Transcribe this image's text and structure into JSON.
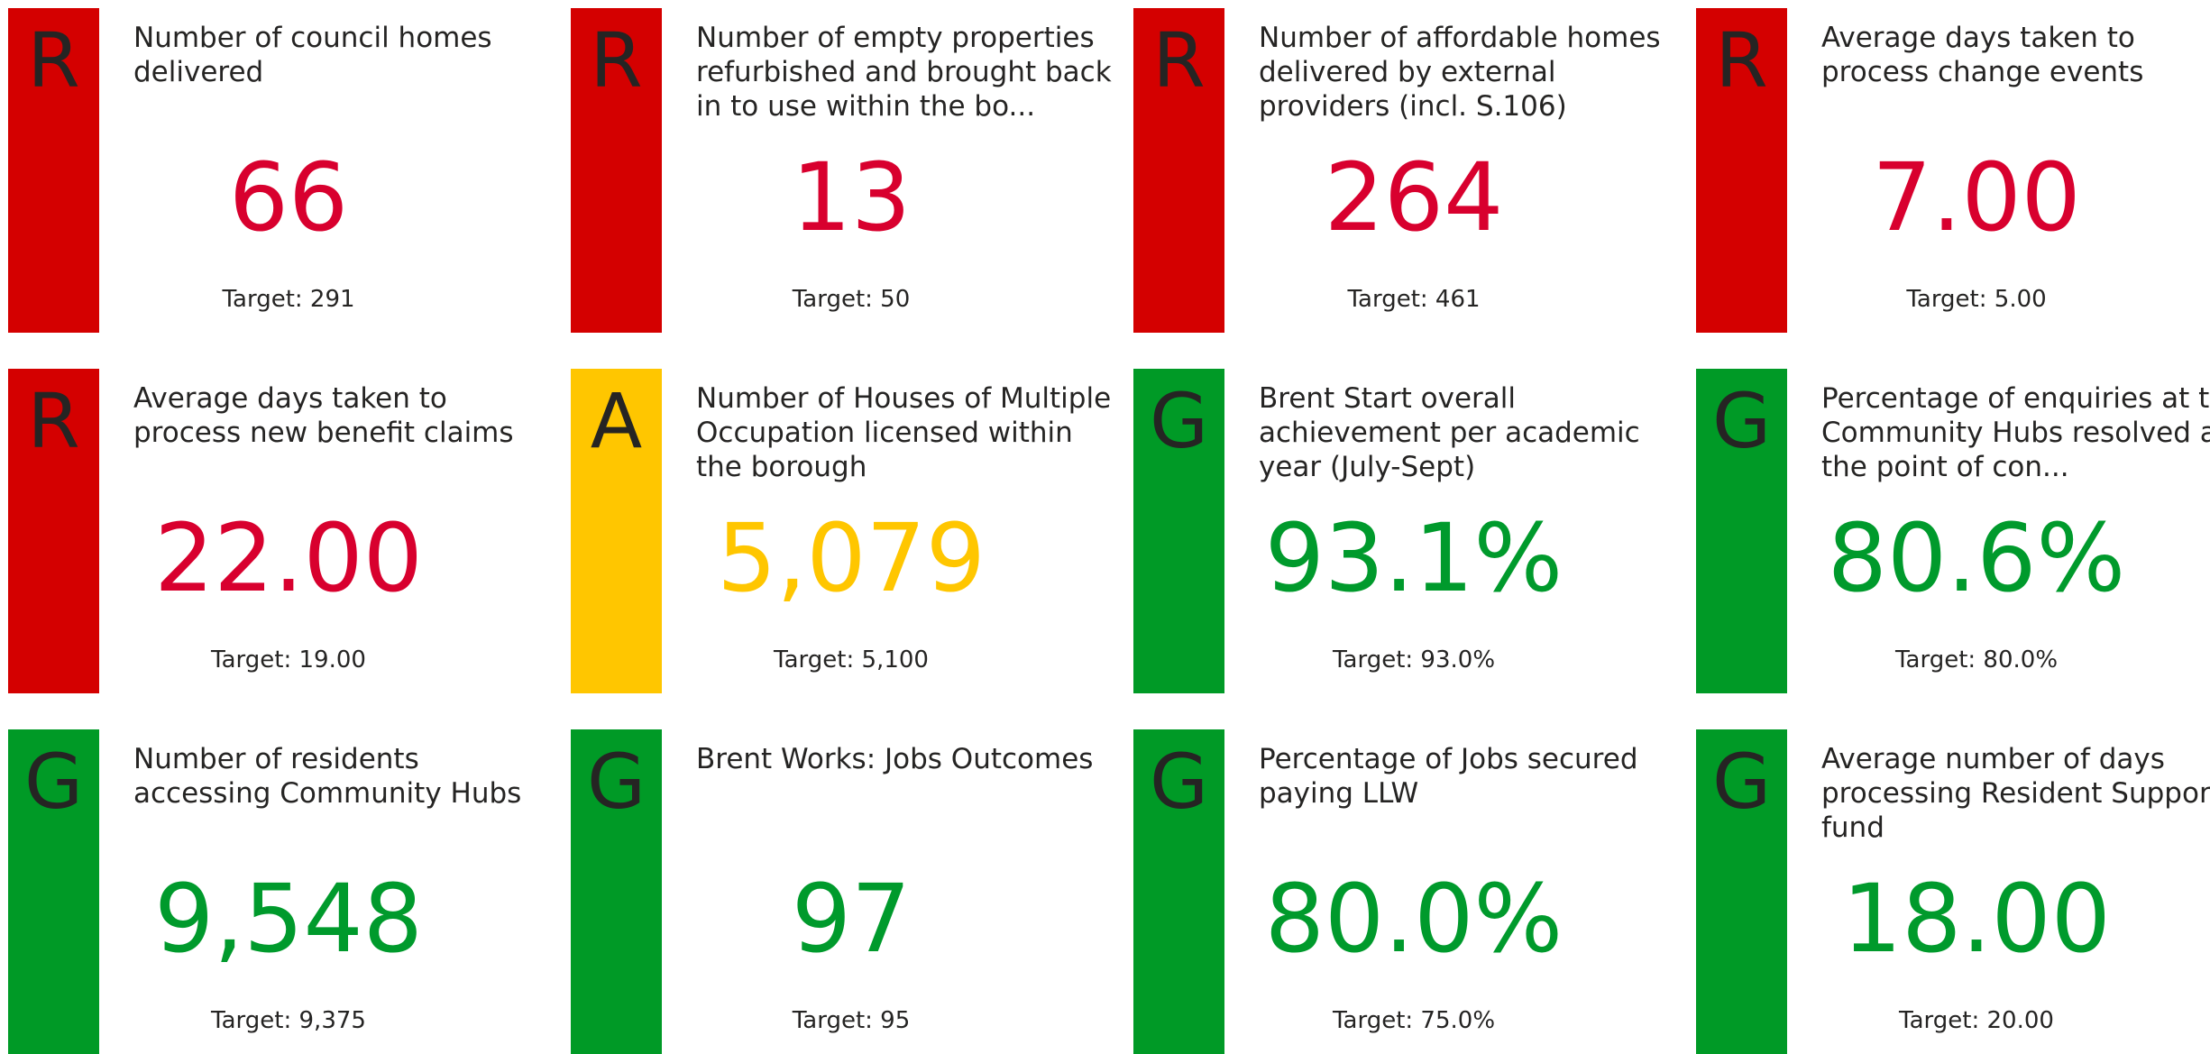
{
  "cards": [
    {
      "status": "R",
      "color": "#d40000",
      "value_color": "#d8002e",
      "title": "Number of council homes delivered",
      "value": "66",
      "target": "Target: 291"
    },
    {
      "status": "R",
      "color": "#d40000",
      "value_color": "#d8002e",
      "title": "Number of empty properties refurbished and brought back in to use within the bo...",
      "value": "13",
      "target": "Target: 50"
    },
    {
      "status": "R",
      "color": "#d40000",
      "value_color": "#d8002e",
      "title": "Number of affordable homes delivered by external providers (incl. S.106)",
      "value": "264",
      "target": "Target: 461"
    },
    {
      "status": "R",
      "color": "#d40000",
      "value_color": "#d8002e",
      "title": "Average days taken to process change events",
      "value": "7.00",
      "target": "Target: 5.00"
    },
    {
      "status": "R",
      "color": "#d40000",
      "value_color": "#d8002e",
      "title": "Average days taken to process new benefit claims",
      "value": "22.00",
      "target": "Target: 19.00"
    },
    {
      "status": "A",
      "color": "#ffc600",
      "value_color": "#ffc600",
      "title": "Number of Houses of Multiple Occupation licensed within the borough",
      "value": "5,079",
      "target": "Target: 5,100"
    },
    {
      "status": "G",
      "color": "#009a26",
      "value_color": "#009a2c",
      "title": "Brent Start overall achievement per academic year (July-Sept)",
      "value": "93.1%",
      "target": "Target: 93.0%"
    },
    {
      "status": "G",
      "color": "#009a26",
      "value_color": "#009a2c",
      "title": "Percentage of enquiries at the Community Hubs resolved at the point of con...",
      "value": "80.6%",
      "target": "Target: 80.0%"
    },
    {
      "status": "G",
      "color": "#009a26",
      "value_color": "#009a2c",
      "title": "Number of residents accessing Community Hubs",
      "value": "9,548",
      "target": "Target: 9,375"
    },
    {
      "status": "G",
      "color": "#009a26",
      "value_color": "#009a2c",
      "title": "Brent Works: Jobs Outcomes",
      "value": "97",
      "target": "Target: 95"
    },
    {
      "status": "G",
      "color": "#009a26",
      "value_color": "#009a2c",
      "title": "Percentage of Jobs secured paying LLW",
      "value": "80.0%",
      "target": "Target: 75.0%"
    },
    {
      "status": "G",
      "color": "#009a26",
      "value_color": "#009a2c",
      "title": "Average number of days processing Resident Support fund",
      "value": "18.00",
      "target": "Target: 20.00"
    }
  ]
}
